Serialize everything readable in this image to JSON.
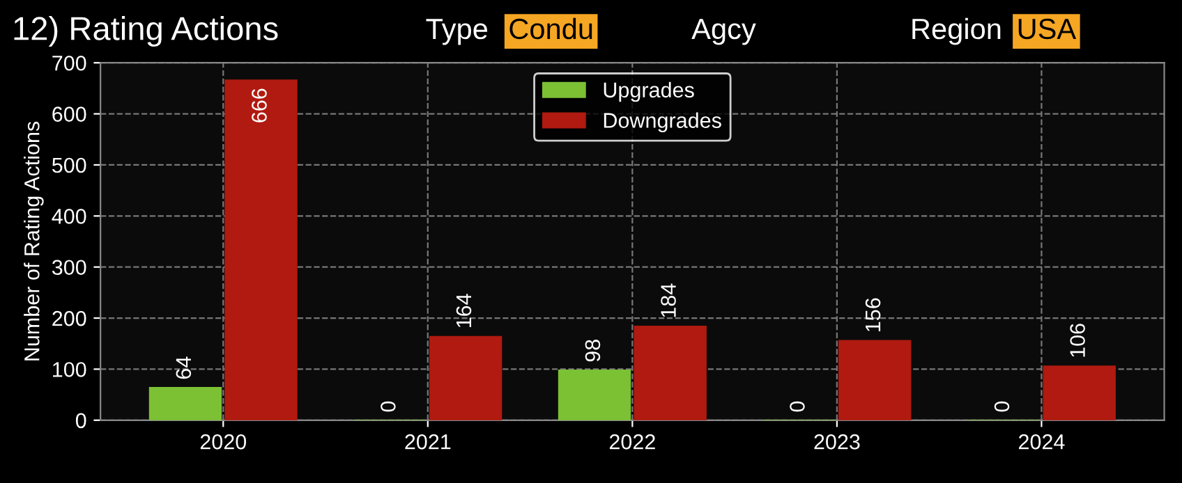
{
  "chart_data": {
    "type": "bar",
    "title": "12) Rating Actions",
    "annotations": [
      "Type",
      "Condu",
      "Agcy",
      "Region",
      "USA"
    ],
    "ylabel": "Number of Rating Actions",
    "categories": [
      "2020",
      "2021",
      "2022",
      "2023",
      "2024"
    ],
    "series": [
      {
        "name": "Upgrades",
        "color": "#7cc034",
        "values": [
          64,
          0,
          98,
          0,
          0
        ]
      },
      {
        "name": "Downgrades",
        "color": "#b01a10",
        "values": [
          666,
          164,
          184,
          156,
          106
        ]
      }
    ],
    "ylim": [
      0,
      700
    ],
    "yticks": [
      0,
      100,
      200,
      300,
      400,
      500,
      600,
      700
    ],
    "grid": true,
    "legend": "top",
    "data_labels": true
  }
}
